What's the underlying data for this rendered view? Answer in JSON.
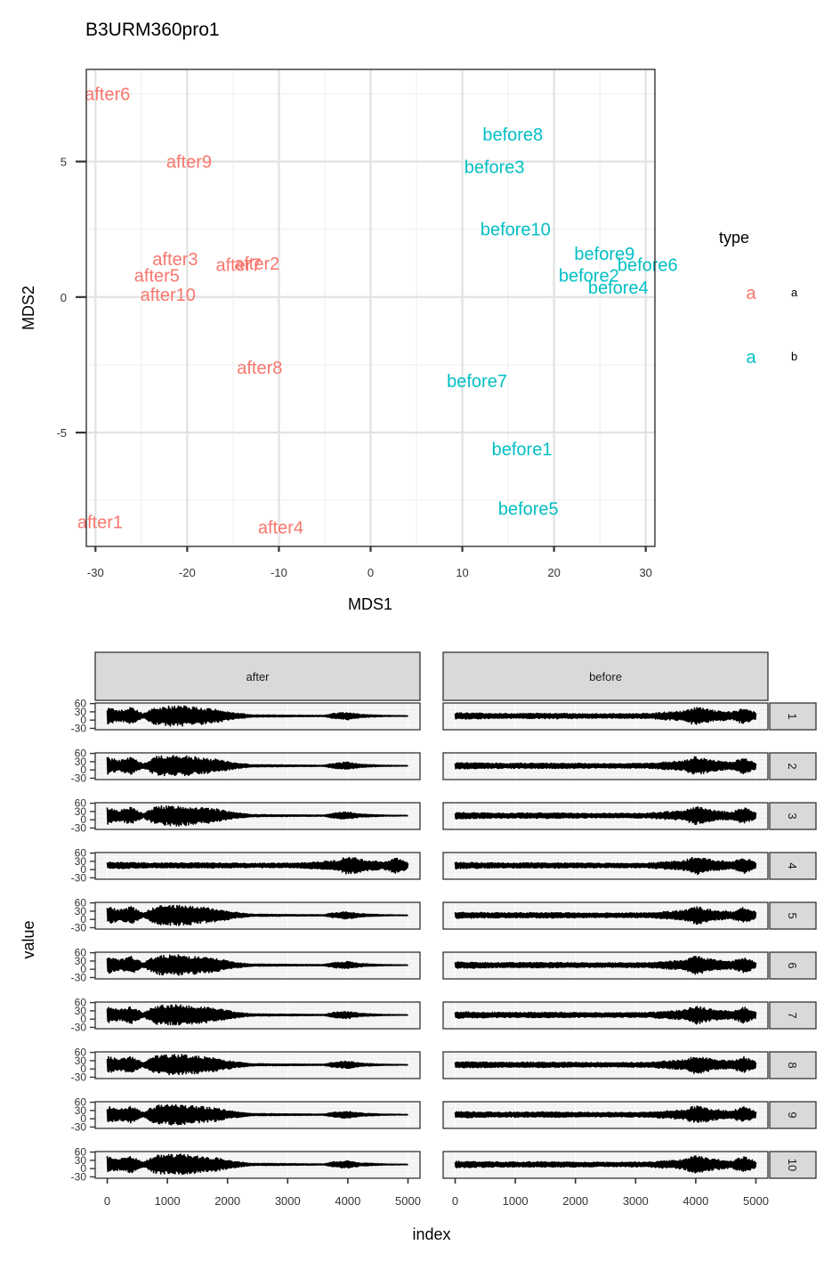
{
  "chart_data": [
    {
      "type": "scatter",
      "title": "B3URM360pro1",
      "xlabel": "MDS1",
      "ylabel": "MDS2",
      "xlim": [
        -31,
        31
      ],
      "ylim": [
        -9.2,
        8.4
      ],
      "xticks": [
        -30,
        -20,
        -10,
        0,
        10,
        20,
        30
      ],
      "xtick_labels": [
        "-30",
        "-20",
        "-10",
        "0",
        "10",
        "20",
        "30"
      ],
      "yticks": [
        -5,
        0,
        5
      ],
      "ytick_labels": [
        "-5",
        "0",
        "5"
      ],
      "grid": true,
      "legend": {
        "title": "type",
        "position": "right",
        "entries": [
          {
            "key": "a",
            "label": "a",
            "color": "#F8766D"
          },
          {
            "key": "a",
            "label": "b",
            "color": "#00BFC4"
          }
        ]
      },
      "points": [
        {
          "label": "after6",
          "x": -28.7,
          "y": 7.5,
          "group": "a"
        },
        {
          "label": "after9",
          "x": -19.8,
          "y": 5.0,
          "group": "a"
        },
        {
          "label": "after3",
          "x": -21.3,
          "y": 1.4,
          "group": "a"
        },
        {
          "label": "after7",
          "x": -14.4,
          "y": 1.2,
          "group": "a"
        },
        {
          "label": "after2",
          "x": -12.4,
          "y": 1.25,
          "group": "a"
        },
        {
          "label": "after5",
          "x": -23.3,
          "y": 0.8,
          "group": "a"
        },
        {
          "label": "after10",
          "x": -22.1,
          "y": 0.1,
          "group": "a"
        },
        {
          "label": "after8",
          "x": -12.1,
          "y": -2.6,
          "group": "a"
        },
        {
          "label": "after1",
          "x": -29.5,
          "y": -8.3,
          "group": "a"
        },
        {
          "label": "after4",
          "x": -9.8,
          "y": -8.5,
          "group": "a"
        },
        {
          "label": "before8",
          "x": 15.5,
          "y": 6.0,
          "group": "b"
        },
        {
          "label": "before3",
          "x": 13.5,
          "y": 4.8,
          "group": "b"
        },
        {
          "label": "before10",
          "x": 15.8,
          "y": 2.5,
          "group": "b"
        },
        {
          "label": "before9",
          "x": 25.5,
          "y": 1.6,
          "group": "b"
        },
        {
          "label": "before6",
          "x": 30.2,
          "y": 1.2,
          "group": "b"
        },
        {
          "label": "before2",
          "x": 23.8,
          "y": 0.8,
          "group": "b"
        },
        {
          "label": "before4",
          "x": 27.0,
          "y": 0.35,
          "group": "b"
        },
        {
          "label": "before7",
          "x": 11.6,
          "y": -3.1,
          "group": "b"
        },
        {
          "label": "before1",
          "x": 16.5,
          "y": -5.6,
          "group": "b"
        },
        {
          "label": "before5",
          "x": 17.2,
          "y": -7.8,
          "group": "b"
        }
      ]
    },
    {
      "type": "line",
      "xlabel": "index",
      "ylabel": "value",
      "xlim": [
        -200,
        5200
      ],
      "ylim": [
        -35,
        62
      ],
      "xticks": [
        0,
        1000,
        2000,
        3000,
        4000,
        5000
      ],
      "xtick_labels": [
        "0",
        "1000",
        "2000",
        "3000",
        "4000",
        "5000"
      ],
      "yticks": [
        60,
        30,
        0,
        -30
      ],
      "ytick_labels": [
        "60",
        "30",
        "0",
        "-30"
      ],
      "column_facets": [
        "after",
        "before"
      ],
      "row_facets": [
        "1",
        "2",
        "3",
        "4",
        "5",
        "6",
        "7",
        "8",
        "9",
        "10"
      ],
      "panels_note": "waveforms: after = high-amplitude burst 0–2000 then flat with small burst ~3700–4100; before = low-amplitude activity rising toward large bursts ~3500–5000 (row 4 after resembles before)",
      "envelope_keys": [
        {
          "x": 0,
          "amp": 32
        },
        {
          "x": 200,
          "amp": 20
        },
        {
          "x": 400,
          "amp": 32
        },
        {
          "x": 600,
          "amp": 8
        },
        {
          "x": 800,
          "amp": 34
        },
        {
          "x": 1200,
          "amp": 38
        },
        {
          "x": 1800,
          "amp": 25
        },
        {
          "x": 2100,
          "amp": 12
        },
        {
          "x": 2400,
          "amp": 4
        },
        {
          "x": 3600,
          "amp": 2
        },
        {
          "x": 3750,
          "amp": 9
        },
        {
          "x": 4000,
          "amp": 14
        },
        {
          "x": 4200,
          "amp": 6
        },
        {
          "x": 4600,
          "amp": 2
        },
        {
          "x": 5000,
          "amp": 1
        }
      ],
      "envelope_keys_before": [
        {
          "x": 0,
          "amp": 12
        },
        {
          "x": 800,
          "amp": 9
        },
        {
          "x": 1600,
          "amp": 10
        },
        {
          "x": 2400,
          "amp": 8
        },
        {
          "x": 3200,
          "amp": 9
        },
        {
          "x": 3500,
          "amp": 14
        },
        {
          "x": 3800,
          "amp": 18
        },
        {
          "x": 4000,
          "amp": 34
        },
        {
          "x": 4300,
          "amp": 20
        },
        {
          "x": 4600,
          "amp": 14
        },
        {
          "x": 4800,
          "amp": 30
        },
        {
          "x": 5000,
          "amp": 12
        }
      ]
    }
  ]
}
